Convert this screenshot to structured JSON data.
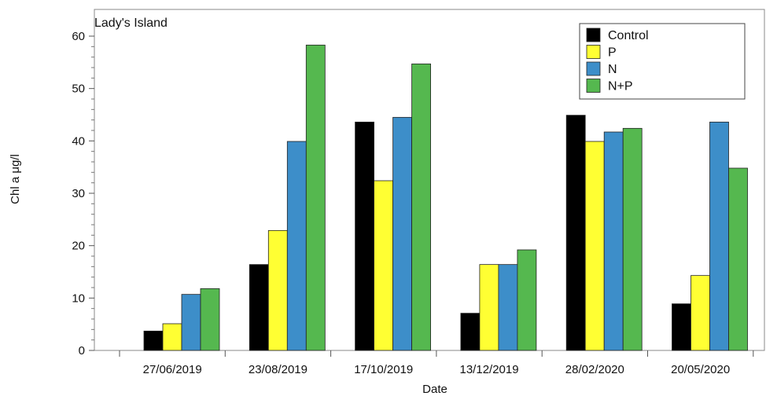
{
  "chart_data": {
    "type": "bar",
    "panel_label": "Lady's Island",
    "xlabel": "Date",
    "ylabel": "Chl a μg/l",
    "ylim": [
      0,
      60
    ],
    "yticks": [
      0,
      10,
      20,
      30,
      40,
      50,
      60
    ],
    "legend_position": "top-right",
    "grid": false,
    "categories": [
      "27/06/2019",
      "23/08/2019",
      "17/10/2019",
      "13/12/2019",
      "28/02/2020",
      "20/05/2020"
    ],
    "series": [
      {
        "name": "Control",
        "color": "#000000",
        "values": [
          3.7,
          16.4,
          43.6,
          7.1,
          44.9,
          8.9
        ]
      },
      {
        "name": "P",
        "color": "#ffff33",
        "values": [
          5.1,
          22.9,
          32.4,
          16.4,
          39.9,
          14.3
        ]
      },
      {
        "name": "N",
        "color": "#3d8ec9",
        "values": [
          10.7,
          39.9,
          44.5,
          16.4,
          41.7,
          43.6
        ]
      },
      {
        "name": "N+P",
        "color": "#55b84f",
        "values": [
          11.8,
          58.3,
          54.7,
          19.2,
          42.4,
          34.8
        ]
      }
    ]
  }
}
